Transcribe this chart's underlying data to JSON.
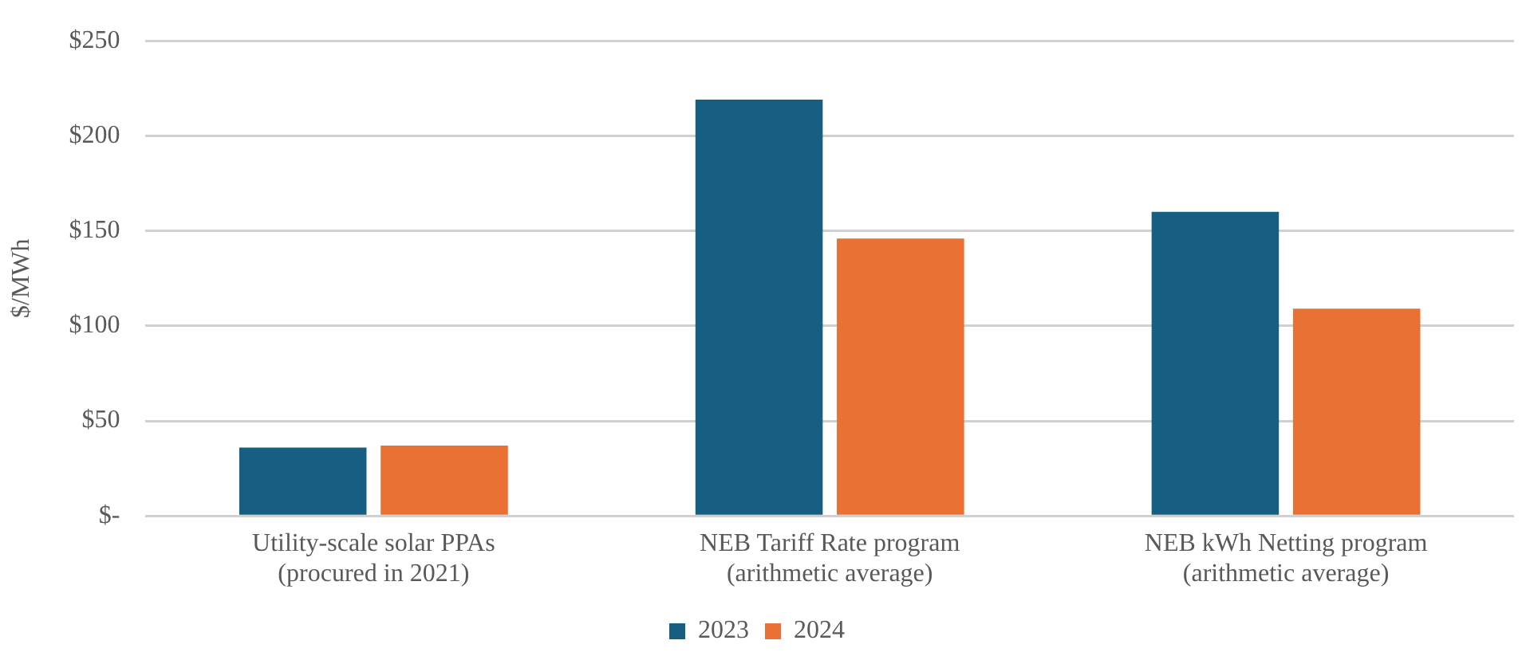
{
  "chart_data": {
    "type": "bar",
    "ylabel": "$/MWh",
    "categories": [
      "Utility-scale solar PPAs (procured in 2021)",
      "NEB Tariff Rate program (arithmetic average)",
      "NEB kWh Netting program (arithmetic average)"
    ],
    "series": [
      {
        "name": "2023",
        "color": "#175f82",
        "values": [
          36,
          219,
          160
        ]
      },
      {
        "name": "2024",
        "color": "#e87133",
        "values": [
          37,
          146,
          109
        ]
      }
    ],
    "ylim": [
      0,
      250
    ],
    "yticks": [
      {
        "value": 0,
        "label": "$-"
      },
      {
        "value": 50,
        "label": "$50"
      },
      {
        "value": 100,
        "label": "$100"
      },
      {
        "value": 150,
        "label": "$150"
      },
      {
        "value": 200,
        "label": "$200"
      },
      {
        "value": 250,
        "label": "$250"
      }
    ],
    "grid": "y",
    "legend": "bottom"
  }
}
